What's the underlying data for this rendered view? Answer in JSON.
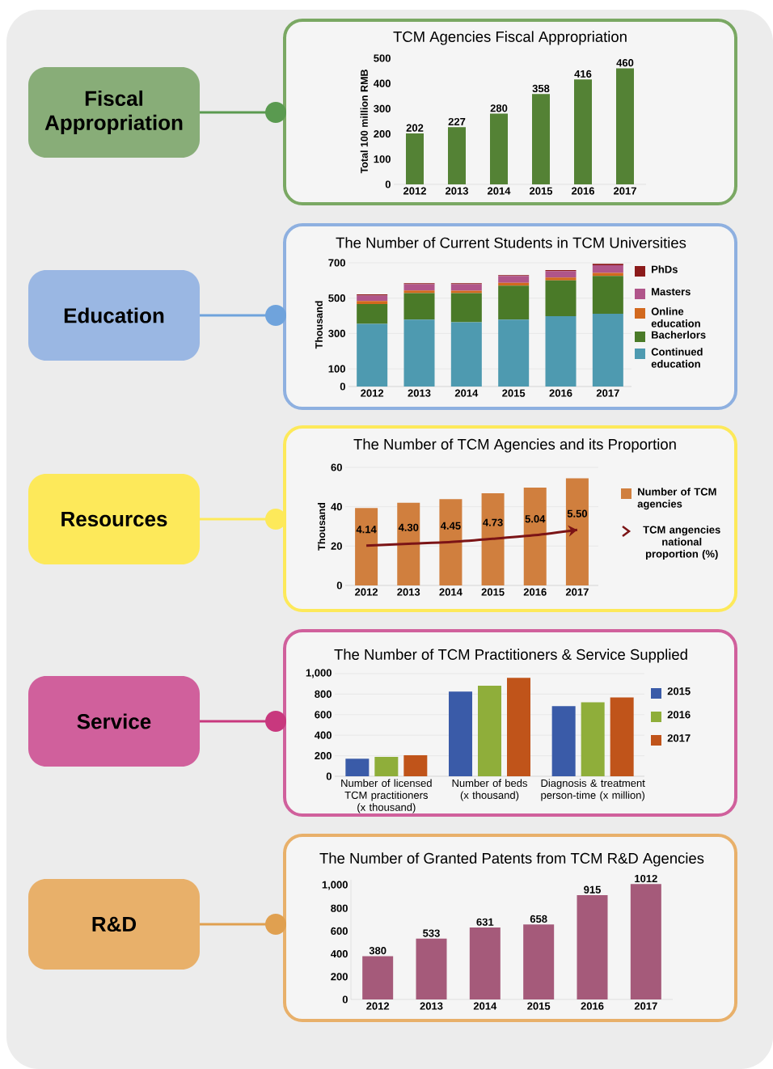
{
  "chart_data": [
    {
      "type": "bar",
      "title": "TCM Agencies Fiscal Appropriation",
      "ylabel": "Total 100 million RMB",
      "categories": [
        "2012",
        "2013",
        "2014",
        "2015",
        "2016",
        "2017"
      ],
      "values": [
        202,
        227,
        280,
        358,
        416,
        460
      ],
      "color": "#548235",
      "ylim": [
        0,
        500
      ],
      "yticks": [
        0,
        100,
        200,
        300,
        400,
        500
      ],
      "data_labels": true
    },
    {
      "type": "bar",
      "title": "The Number of Current Students in TCM Universities",
      "ylabel": "Thousand",
      "categories": [
        "2012",
        "2013",
        "2014",
        "2015",
        "2016",
        "2017"
      ],
      "stacked": true,
      "ylim": [
        0,
        700
      ],
      "yticks": [
        0,
        100,
        300,
        500,
        700
      ],
      "grid": "y",
      "legend": "right",
      "series": [
        {
          "name": "Continued education",
          "color": "#4e9ab0",
          "values": [
            354,
            379,
            364,
            378,
            398,
            412
          ]
        },
        {
          "name": "Bacherlors",
          "color": "#4a7a28",
          "values": [
            113,
            149,
            164,
            193,
            203,
            214
          ]
        },
        {
          "name": "Online education",
          "color": "#d2691e",
          "values": [
            17,
            15,
            14,
            16,
            15,
            17
          ]
        },
        {
          "name": "Masters",
          "color": "#b0558a",
          "values": [
            31,
            36,
            37,
            39,
            37,
            43
          ]
        },
        {
          "name": "PhDs",
          "color": "#8b1a1a",
          "values": [
            6,
            6,
            6,
            4,
            6,
            8
          ]
        }
      ]
    },
    {
      "type": "bar",
      "title": "The Number of TCM Agencies and its Proportion",
      "ylabel": "Thousand",
      "categories": [
        "2012",
        "2013",
        "2014",
        "2015",
        "2016",
        "2017"
      ],
      "ylim": [
        0,
        60
      ],
      "yticks": [
        0,
        20,
        40,
        60
      ],
      "grid": "y",
      "legend": "right",
      "marker": "none",
      "line_style": "solid",
      "series": [
        {
          "name": "Number of TCM agencies",
          "color": "#d07f3e",
          "values": [
            39.3,
            42,
            43.9,
            46.8,
            49.7,
            54.4
          ]
        },
        {
          "name": "TCM angencies national proportion (%)",
          "type": "line",
          "axis": "y2",
          "color": "#7b1416",
          "values": [
            4.14,
            4.3,
            4.45,
            4.73,
            5.04,
            5.5
          ],
          "value_labels": [
            "4.14",
            "4.30",
            "4.45",
            "4.73",
            "5.04",
            "5.50"
          ]
        }
      ]
    },
    {
      "type": "bar",
      "title": "The Number of TCM Practitioners & Service Supplied",
      "categories": [
        "Number of  licensed TCM practitioners (x thousand)",
        "Number of beds (x thousand)",
        "Diagnosis & treatment person-time (x million)"
      ],
      "ylim": [
        0,
        1000
      ],
      "yticks": [
        0,
        200,
        400,
        600,
        800,
        {
          "value": 1000,
          "label": "1,000"
        }
      ],
      "grid": "y",
      "legend": "right",
      "series": [
        {
          "name": "2015",
          "color": "#3a5ba8",
          "values": [
            171,
            824,
            684
          ]
        },
        {
          "name": "2016",
          "color": "#8fae3a",
          "values": [
            189,
            882,
            721
          ]
        },
        {
          "name": "2017",
          "color": "#c0541a",
          "values": [
            205,
            958,
            768
          ]
        }
      ]
    },
    {
      "type": "bar",
      "title": "The Number of Granted Patents from TCM R&D Agencies",
      "categories": [
        "2012",
        "2013",
        "2014",
        "2015",
        "2016",
        "2017"
      ],
      "values": [
        380,
        533,
        631,
        658,
        915,
        1012
      ],
      "color": "#a55a7a",
      "ylim": [
        0,
        1050
      ],
      "yticks": [
        0,
        200,
        400,
        600,
        800,
        {
          "value": 1000,
          "label": "1,000"
        }
      ],
      "data_labels": true
    },
    {
      "type": "other",
      "annotations": [
        "Fiscal Appropriation",
        "Education",
        "Resources",
        "Service",
        "R&D"
      ]
    }
  ]
}
